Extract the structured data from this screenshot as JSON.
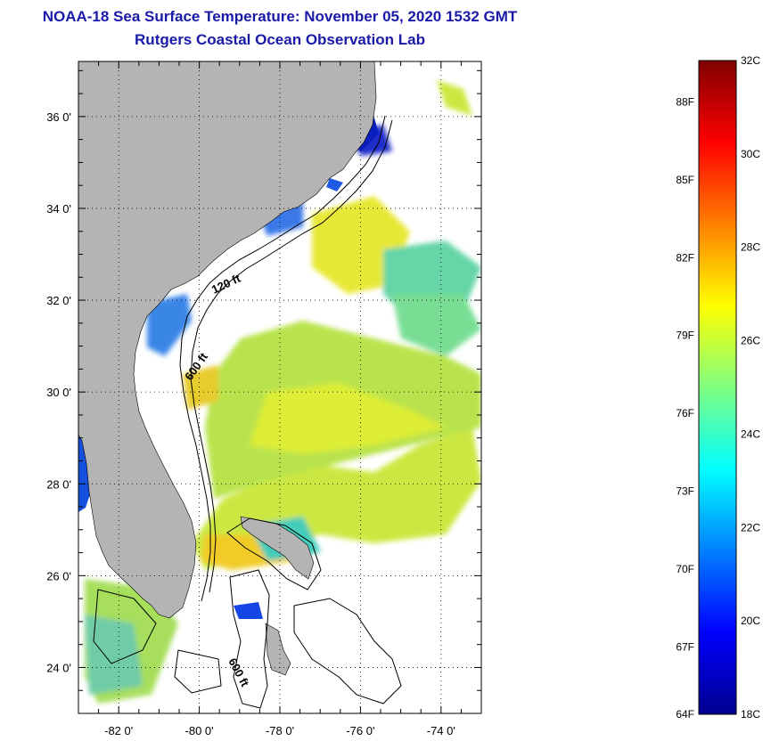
{
  "header": {
    "title": "NOAA-18 Sea Surface Temperature:  November 05, 2020 1532 GMT",
    "subtitle": "Rutgers Coastal Ocean Observation Lab"
  },
  "map": {
    "lat_ticks": [
      "36 0'",
      "34 0'",
      "32 0'",
      "30 0'",
      "28 0'",
      "26 0'",
      "24 0'"
    ],
    "lon_ticks": [
      "-82 0'",
      "-80 0'",
      "-78 0'",
      "-76 0'",
      "-74 0'"
    ],
    "lat_values": [
      36,
      34,
      32,
      30,
      28,
      26,
      24
    ],
    "lon_values": [
      -82,
      -80,
      -78,
      -76,
      -74
    ],
    "lat_range": [
      23.0,
      37.2
    ],
    "lon_range": [
      -83.0,
      -73.0
    ],
    "contour_labels": [
      "120 ft",
      "600 ft",
      "600 ft"
    ],
    "land_color": "#b4b4b4"
  },
  "colorbar": {
    "f_labels": [
      "88F",
      "85F",
      "82F",
      "79F",
      "76F",
      "73F",
      "70F",
      "67F",
      "64F"
    ],
    "f_values": [
      88,
      85,
      82,
      79,
      76,
      73,
      70,
      67,
      64
    ],
    "c_labels": [
      "32C",
      "30C",
      "28C",
      "26C",
      "24C",
      "22C",
      "20C",
      "18C"
    ],
    "c_values": [
      32,
      30,
      28,
      26,
      24,
      22,
      20,
      18
    ],
    "range_c": [
      18,
      32
    ]
  }
}
